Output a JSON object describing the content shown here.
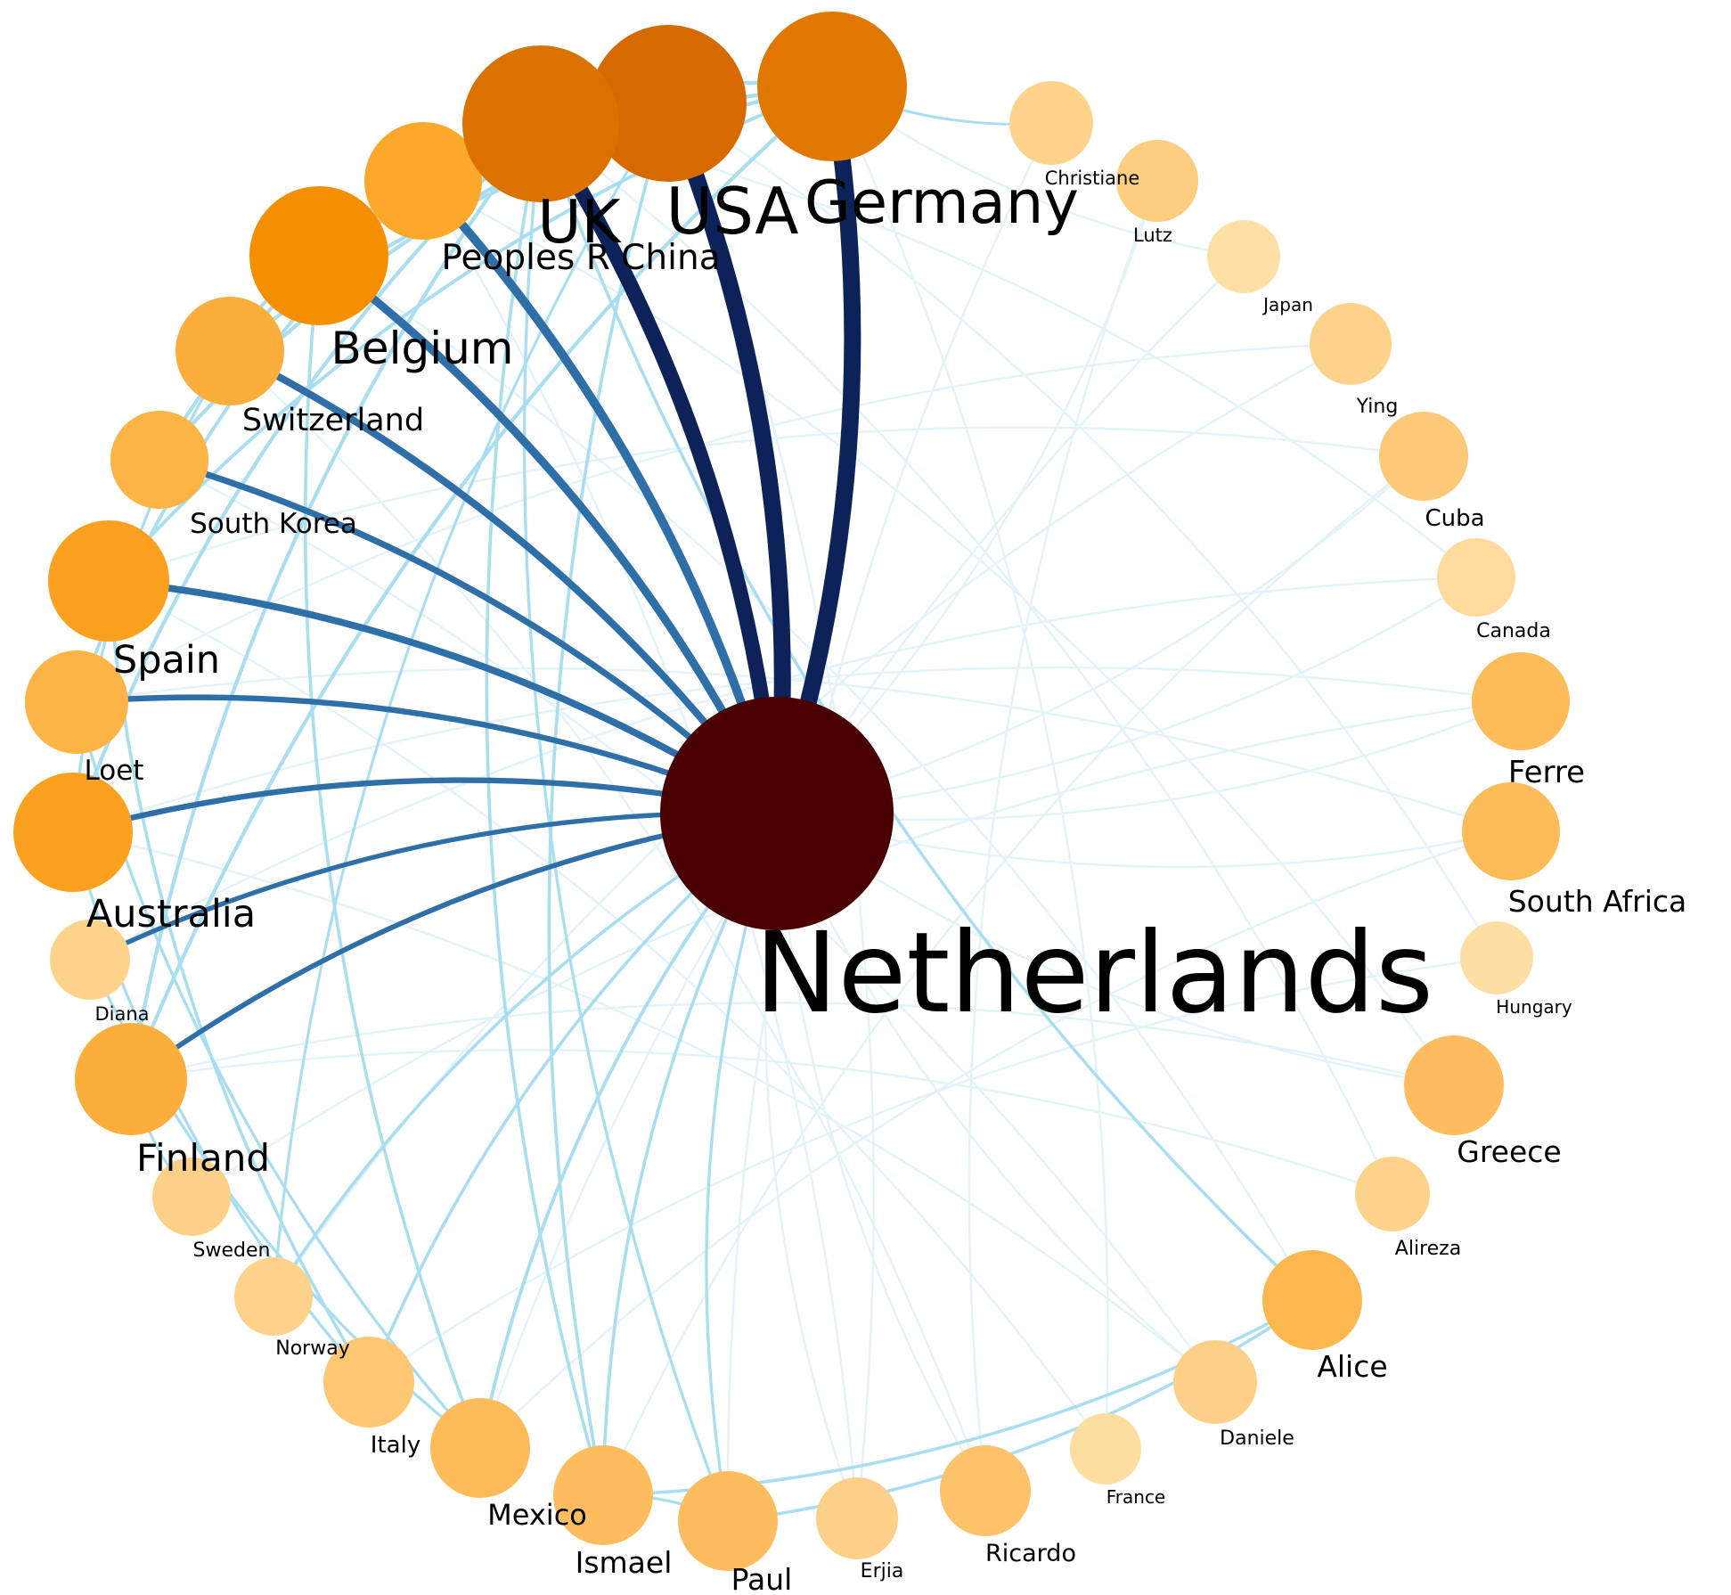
{
  "colors": {
    "background": "#ffffff",
    "label": "#000000",
    "edge_strong": "#0d2259",
    "edge_medium": "#2f6fa8",
    "edge_weak": "#a9def0",
    "edge_faint": "#e3f3fa",
    "hub_node": "#4a0000"
  },
  "hub": {
    "id": "netherlands",
    "label": "Netherlands",
    "color": "#4a0000"
  },
  "nodes": [
    {
      "id": "usa",
      "label": "USA",
      "color": "#d66a00"
    },
    {
      "id": "germany",
      "label": "Germany",
      "color": "#e07800"
    },
    {
      "id": "christiane",
      "label": "Christiane",
      "color": "#fdd38c"
    },
    {
      "id": "lutz",
      "label": "Lutz",
      "color": "#fdcd80"
    },
    {
      "id": "japan",
      "label": "Japan",
      "color": "#fedfa5"
    },
    {
      "id": "ying",
      "label": "Ying",
      "color": "#fdd38c"
    },
    {
      "id": "cuba",
      "label": "Cuba",
      "color": "#fdc978"
    },
    {
      "id": "canada",
      "label": "Canada",
      "color": "#fedb9c"
    },
    {
      "id": "ferre",
      "label": "Ferre",
      "color": "#fdbb5a"
    },
    {
      "id": "south_africa",
      "label": "South Africa",
      "color": "#fdbb5a"
    },
    {
      "id": "hungary",
      "label": "Hungary",
      "color": "#fedea3"
    },
    {
      "id": "greece",
      "label": "Greece",
      "color": "#fdbd5e"
    },
    {
      "id": "alireza",
      "label": "Alireza",
      "color": "#fdd38c"
    },
    {
      "id": "alice",
      "label": "Alice",
      "color": "#fcb84f"
    },
    {
      "id": "daniele",
      "label": "Daniele",
      "color": "#fdd08a"
    },
    {
      "id": "france",
      "label": "France",
      "color": "#fedda1"
    },
    {
      "id": "ricardo",
      "label": "Ricardo",
      "color": "#fdc26a"
    },
    {
      "id": "erjia",
      "label": "Erjia",
      "color": "#fdd08a"
    },
    {
      "id": "paul",
      "label": "Paul",
      "color": "#fdbd5e"
    },
    {
      "id": "ismael",
      "label": "Ismael",
      "color": "#fdbd5e"
    },
    {
      "id": "mexico",
      "label": "Mexico",
      "color": "#fdbb5a"
    },
    {
      "id": "italy",
      "label": "Italy",
      "color": "#fdc774"
    },
    {
      "id": "norway",
      "label": "Norway",
      "color": "#fdd38c"
    },
    {
      "id": "sweden",
      "label": "Sweden",
      "color": "#fdd08a"
    },
    {
      "id": "finland",
      "label": "Finland",
      "color": "#fcae3c"
    },
    {
      "id": "diana",
      "label": "Diana",
      "color": "#fdd38c"
    },
    {
      "id": "australia",
      "label": "Australia",
      "color": "#fba11f"
    },
    {
      "id": "loet",
      "label": "Loet",
      "color": "#fcb446"
    },
    {
      "id": "spain",
      "label": "Spain",
      "color": "#fba11f"
    },
    {
      "id": "south_korea",
      "label": "South Korea",
      "color": "#fcb446"
    },
    {
      "id": "switzerland",
      "label": "Switzerland",
      "color": "#fcae3c"
    },
    {
      "id": "belgium",
      "label": "Belgium",
      "color": "#f58f00"
    },
    {
      "id": "peoples_r_china",
      "label": "Peoples R China",
      "color": "#fca82b"
    },
    {
      "id": "uk",
      "label": "UK",
      "color": "#db7200"
    }
  ],
  "edges": [
    {
      "from": "netherlands",
      "to": "germany",
      "strength": 1.0
    },
    {
      "from": "netherlands",
      "to": "usa",
      "strength": 1.0
    },
    {
      "from": "netherlands",
      "to": "uk",
      "strength": 0.95
    },
    {
      "from": "netherlands",
      "to": "peoples_r_china",
      "strength": 0.75
    },
    {
      "from": "netherlands",
      "to": "belgium",
      "strength": 0.7
    },
    {
      "from": "netherlands",
      "to": "switzerland",
      "strength": 0.62
    },
    {
      "from": "netherlands",
      "to": "south_korea",
      "strength": 0.55
    },
    {
      "from": "netherlands",
      "to": "spain",
      "strength": 0.6
    },
    {
      "from": "netherlands",
      "to": "loet",
      "strength": 0.5
    },
    {
      "from": "netherlands",
      "to": "australia",
      "strength": 0.5
    },
    {
      "from": "netherlands",
      "to": "diana",
      "strength": 0.42
    },
    {
      "from": "netherlands",
      "to": "finland",
      "strength": 0.45
    },
    {
      "from": "netherlands",
      "to": "norway",
      "strength": 0.2
    },
    {
      "from": "netherlands",
      "to": "italy",
      "strength": 0.2
    },
    {
      "from": "netherlands",
      "to": "mexico",
      "strength": 0.25
    },
    {
      "from": "netherlands",
      "to": "ismael",
      "strength": 0.2
    },
    {
      "from": "netherlands",
      "to": "paul",
      "strength": 0.15
    },
    {
      "from": "netherlands",
      "to": "ricardo",
      "strength": 0.08
    },
    {
      "from": "netherlands",
      "to": "erjia",
      "strength": 0.08
    },
    {
      "from": "netherlands",
      "to": "south_africa",
      "strength": 0.06
    },
    {
      "from": "netherlands",
      "to": "ferre",
      "strength": 0.06
    },
    {
      "from": "netherlands",
      "to": "cuba",
      "strength": 0.05
    },
    {
      "from": "netherlands",
      "to": "greece",
      "strength": 0.05
    },
    {
      "from": "netherlands",
      "to": "canada",
      "strength": 0.05
    },
    {
      "from": "netherlands",
      "to": "lutz",
      "strength": 0.05
    },
    {
      "from": "netherlands",
      "to": "daniele",
      "strength": 0.05
    },
    {
      "from": "usa",
      "to": "belgium",
      "strength": 0.35
    },
    {
      "from": "usa",
      "to": "south_korea",
      "strength": 0.3
    },
    {
      "from": "usa",
      "to": "ismael",
      "strength": 0.2
    },
    {
      "from": "usa",
      "to": "peoples_r_china",
      "strength": 0.35
    },
    {
      "from": "germany",
      "to": "belgium",
      "strength": 0.32
    },
    {
      "from": "germany",
      "to": "switzerland",
      "strength": 0.3
    },
    {
      "from": "germany",
      "to": "finland",
      "strength": 0.3
    },
    {
      "from": "germany",
      "to": "uk",
      "strength": 0.3
    },
    {
      "from": "germany",
      "to": "spain",
      "strength": 0.25
    },
    {
      "from": "germany",
      "to": "christiane",
      "strength": 0.1
    },
    {
      "from": "uk",
      "to": "peoples_r_china",
      "strength": 0.35
    },
    {
      "from": "uk",
      "to": "australia",
      "strength": 0.3
    },
    {
      "from": "uk",
      "to": "finland",
      "strength": 0.3
    },
    {
      "from": "uk",
      "to": "ismael",
      "strength": 0.2
    },
    {
      "from": "uk",
      "to": "alice",
      "strength": 0.18
    },
    {
      "from": "uk",
      "to": "paul",
      "strength": 0.15
    },
    {
      "from": "peoples_r_china",
      "to": "belgium",
      "strength": 0.3
    },
    {
      "from": "peoples_r_china",
      "to": "south_korea",
      "strength": 0.3
    },
    {
      "from": "peoples_r_china",
      "to": "loet",
      "strength": 0.25
    },
    {
      "from": "belgium",
      "to": "mexico",
      "strength": 0.2
    },
    {
      "from": "belgium",
      "to": "switzerland",
      "strength": 0.3
    },
    {
      "from": "spain",
      "to": "italy",
      "strength": 0.2
    },
    {
      "from": "switzerland",
      "to": "australia",
      "strength": 0.15
    },
    {
      "from": "australia",
      "to": "italy",
      "strength": 0.15
    },
    {
      "from": "finland",
      "to": "sweden",
      "strength": 0.1
    },
    {
      "from": "diana",
      "to": "mexico",
      "strength": 0.15
    },
    {
      "from": "loet",
      "to": "mexico",
      "strength": 0.15
    },
    {
      "from": "ismael",
      "to": "alice",
      "strength": 0.18
    },
    {
      "from": "paul",
      "to": "alice",
      "strength": 0.18
    },
    {
      "from": "paul",
      "to": "ismael",
      "strength": 0.15
    },
    {
      "from": "usa",
      "to": "norway",
      "strength": 0.12
    },
    {
      "from": "germany",
      "to": "japan",
      "strength": 0.05
    },
    {
      "from": "south_africa",
      "to": "mexico",
      "strength": 0.05
    },
    {
      "from": "ferre",
      "to": "australia",
      "strength": 0.05
    },
    {
      "from": "cuba",
      "to": "spain",
      "strength": 0.05
    },
    {
      "from": "greece",
      "to": "finland",
      "strength": 0.05
    },
    {
      "from": "alireza",
      "to": "uk",
      "strength": 0.05
    },
    {
      "from": "ying",
      "to": "loet",
      "strength": 0.05
    },
    {
      "from": "daniele",
      "to": "south_korea",
      "strength": 0.05
    },
    {
      "from": "france",
      "to": "germany",
      "strength": 0.05
    },
    {
      "from": "ricardo",
      "to": "switzerland",
      "strength": 0.05
    },
    {
      "from": "erjia",
      "to": "usa",
      "strength": 0.05
    },
    {
      "from": "hungary",
      "to": "italy",
      "strength": 0.05
    },
    {
      "from": "canada",
      "to": "diana",
      "strength": 0.05
    },
    {
      "from": "christiane",
      "to": "paul",
      "strength": 0.05
    },
    {
      "from": "lutz",
      "to": "ricardo",
      "strength": 0.05
    },
    {
      "from": "cuba",
      "to": "ismael",
      "strength": 0.05
    },
    {
      "from": "ferre",
      "to": "sweden",
      "strength": 0.05
    },
    {
      "from": "south_africa",
      "to": "loet",
      "strength": 0.05
    },
    {
      "from": "greece",
      "to": "peoples_r_china",
      "strength": 0.05
    },
    {
      "from": "alice",
      "to": "belgium",
      "strength": 0.05
    },
    {
      "from": "daniele",
      "to": "australia",
      "strength": 0.05
    },
    {
      "from": "japan",
      "to": "mexico",
      "strength": 0.05
    },
    {
      "from": "ying",
      "to": "norway",
      "strength": 0.05
    },
    {
      "from": "canada",
      "to": "uk",
      "strength": 0.05
    },
    {
      "from": "france",
      "to": "spain",
      "strength": 0.05
    },
    {
      "from": "hungary",
      "to": "usa",
      "strength": 0.05
    },
    {
      "from": "alireza",
      "to": "finland",
      "strength": 0.05
    },
    {
      "from": "erjia",
      "to": "peoples_r_china",
      "strength": 0.05
    }
  ]
}
